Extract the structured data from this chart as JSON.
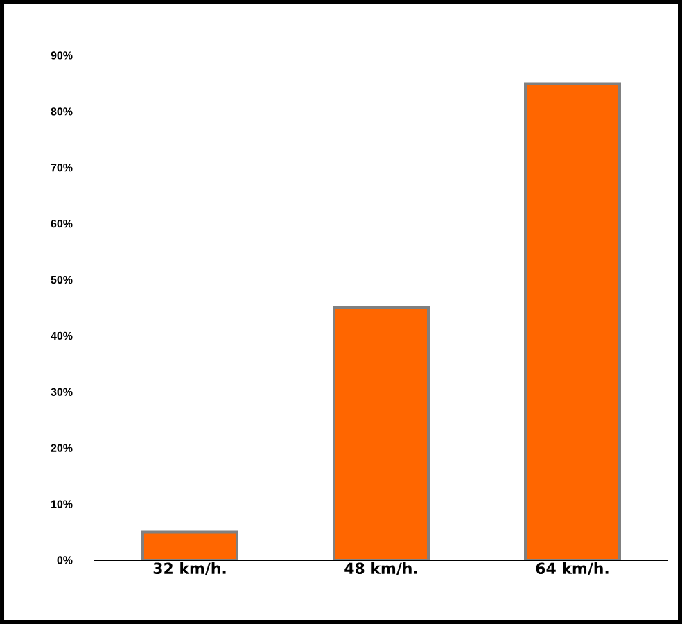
{
  "chart_data": {
    "type": "bar",
    "categories": [
      "32 km/h.",
      "48 km/h.",
      "64 km/h."
    ],
    "values": [
      5,
      45,
      85
    ],
    "color": "#ff6600",
    "ylim": [
      0,
      90
    ],
    "yticks": [
      {
        "value": 0,
        "label": "0%"
      },
      {
        "value": 10,
        "label": "10%"
      },
      {
        "value": 20,
        "label": "20%"
      },
      {
        "value": 30,
        "label": "30%"
      },
      {
        "value": 40,
        "label": "40%"
      },
      {
        "value": 50,
        "label": "50%"
      },
      {
        "value": 60,
        "label": "60%"
      },
      {
        "value": 70,
        "label": "70%"
      },
      {
        "value": 80,
        "label": "80%"
      },
      {
        "value": 90,
        "label": "90%"
      }
    ]
  }
}
